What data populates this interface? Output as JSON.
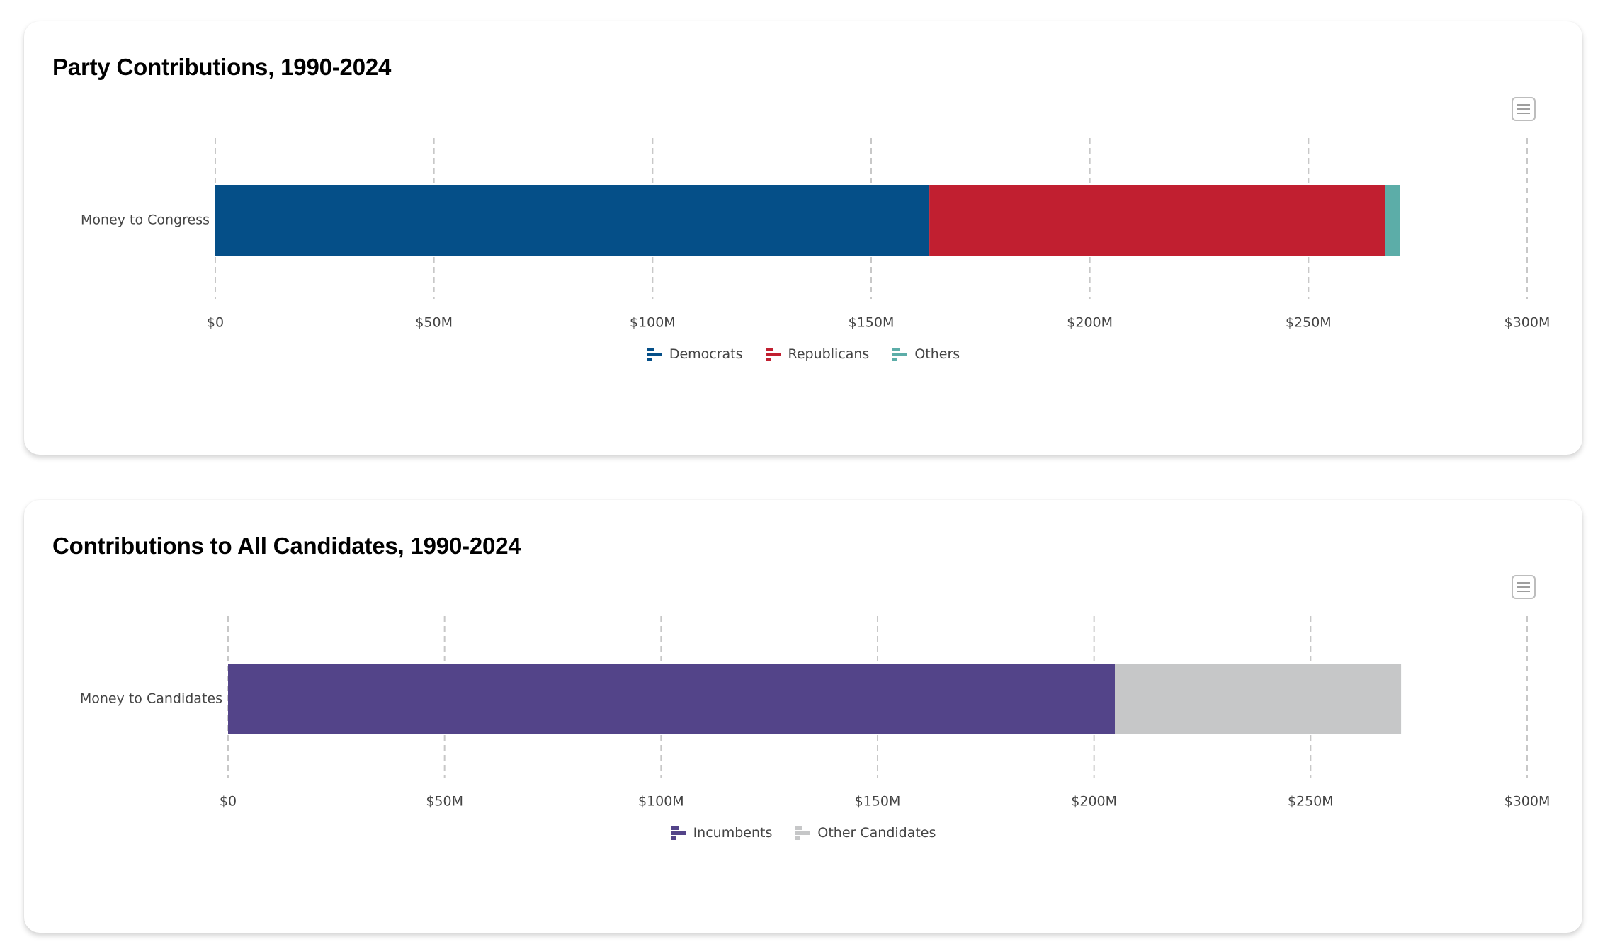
{
  "charts": [
    {
      "id": "party",
      "title": "Party Contributions, 1990-2024",
      "menu_icon": "hamburger-menu-icon",
      "category_label": "Money to Congress",
      "tick_labels": [
        "$0",
        "$50M",
        "$100M",
        "$150M",
        "$200M",
        "$250M",
        "$300M"
      ],
      "legend": [
        {
          "label": "Democrats",
          "color": "#054f88",
          "icon": "bar-chart-horizontal-icon"
        },
        {
          "label": "Republicans",
          "color": "#c11f30",
          "icon": "bar-chart-horizontal-icon"
        },
        {
          "label": "Others",
          "color": "#5cada8",
          "icon": "bar-chart-horizontal-icon"
        }
      ]
    },
    {
      "id": "candidates",
      "title": "Contributions to All Candidates, 1990-2024",
      "menu_icon": "hamburger-menu-icon",
      "category_label": "Money to Candidates",
      "tick_labels": [
        "$0",
        "$50M",
        "$100M",
        "$150M",
        "$200M",
        "$250M",
        "$300M"
      ],
      "legend": [
        {
          "label": "Incumbents",
          "color": "#534489",
          "icon": "bar-chart-horizontal-icon"
        },
        {
          "label": "Other Candidates",
          "color": "#c6c7c8",
          "icon": "bar-chart-horizontal-icon"
        }
      ]
    }
  ],
  "chart_data": [
    {
      "type": "bar",
      "orientation": "horizontal",
      "stacked": true,
      "title": "Party Contributions, 1990-2024",
      "categories": [
        "Money to Congress"
      ],
      "series": [
        {
          "name": "Democrats",
          "values": [
            163.3
          ],
          "color": "#054f88"
        },
        {
          "name": "Republicans",
          "values": [
            104.3
          ],
          "color": "#c11f30"
        },
        {
          "name": "Others",
          "values": [
            3.3
          ],
          "color": "#5cada8"
        }
      ],
      "xlabel": "",
      "ylabel": "",
      "units": "USD millions",
      "xlim": [
        0,
        300
      ],
      "xticks": [
        0,
        50,
        100,
        150,
        200,
        250,
        300
      ],
      "xtick_labels": [
        "$0",
        "$50M",
        "$100M",
        "$150M",
        "$200M",
        "$250M",
        "$300M"
      ],
      "grid": "vertical dashed",
      "legend_position": "bottom-center"
    },
    {
      "type": "bar",
      "orientation": "horizontal",
      "stacked": true,
      "title": "Contributions to All Candidates, 1990-2024",
      "categories": [
        "Money to Candidates"
      ],
      "series": [
        {
          "name": "Incumbents",
          "values": [
            204.8
          ],
          "color": "#534489"
        },
        {
          "name": "Other Candidates",
          "values": [
            66.1
          ],
          "color": "#c6c7c8"
        }
      ],
      "xlabel": "",
      "ylabel": "",
      "units": "USD millions",
      "xlim": [
        0,
        300
      ],
      "xticks": [
        0,
        50,
        100,
        150,
        200,
        250,
        300
      ],
      "xtick_labels": [
        "$0",
        "$50M",
        "$100M",
        "$150M",
        "$200M",
        "$250M",
        "$300M"
      ],
      "grid": "vertical dashed",
      "legend_position": "bottom-center"
    }
  ]
}
